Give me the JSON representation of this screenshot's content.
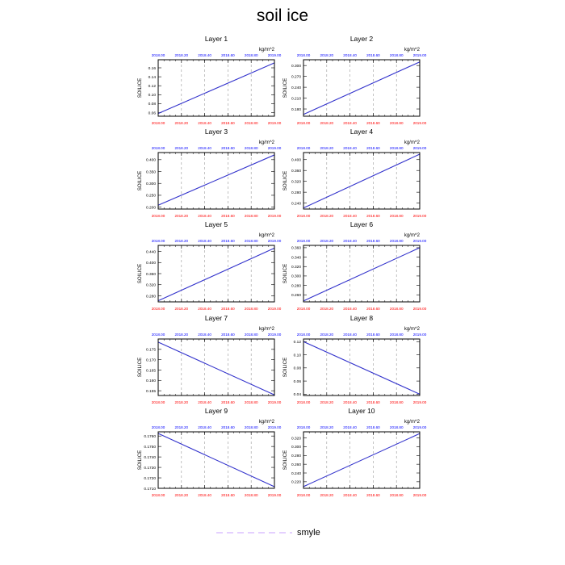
{
  "figure": {
    "title": "soil ice",
    "units": "kg/m^2",
    "ylabel": "SOILICE",
    "legend_label": "smyle"
  },
  "colors": {
    "series_line": "#3333cc",
    "bottom_tick_labels": "#ff0000",
    "top_tick_labels": "#0000ff",
    "grid": "#999999",
    "legend_line": "#c8a0ff"
  },
  "chart_data": [
    {
      "type": "line",
      "title": "Layer 1",
      "ylabel": "SOILICE",
      "units": "kg/m^2",
      "x_ticks": [
        "2018.00",
        "2018.20",
        "2018.40",
        "2018.60",
        "2018.80",
        "2019.00"
      ],
      "y_ticks": [
        "0.06",
        "0.08",
        "0.10",
        "0.12",
        "0.14",
        "0.16"
      ],
      "xlim": [
        2018.0,
        2019.0
      ],
      "ylim": [
        0.052,
        0.178
      ],
      "series": [
        {
          "x": [
            2018.0,
            2019.0
          ],
          "y": [
            0.058,
            0.171
          ]
        }
      ]
    },
    {
      "type": "line",
      "title": "Layer 2",
      "ylabel": "SOILICE",
      "units": "kg/m^2",
      "x_ticks": [
        "2018.00",
        "2018.20",
        "2018.40",
        "2018.60",
        "2018.80",
        "2019.00"
      ],
      "y_ticks": [
        "0.180",
        "0.210",
        "0.240",
        "0.270",
        "0.300"
      ],
      "xlim": [
        2018.0,
        2019.0
      ],
      "ylim": [
        0.16,
        0.316
      ],
      "series": [
        {
          "x": [
            2018.0,
            2019.0
          ],
          "y": [
            0.165,
            0.31
          ]
        }
      ]
    },
    {
      "type": "line",
      "title": "Layer 3",
      "ylabel": "SOILICE",
      "units": "kg/m^2",
      "x_ticks": [
        "2018.00",
        "2018.20",
        "2018.40",
        "2018.60",
        "2018.80",
        "2019.00"
      ],
      "y_ticks": [
        "0.200",
        "0.250",
        "0.300",
        "0.350",
        "0.400"
      ],
      "xlim": [
        2018.0,
        2019.0
      ],
      "ylim": [
        0.192,
        0.43
      ],
      "series": [
        {
          "x": [
            2018.0,
            2019.0
          ],
          "y": [
            0.208,
            0.42
          ]
        }
      ]
    },
    {
      "type": "line",
      "title": "Layer 4",
      "ylabel": "SOILICE",
      "units": "kg/m^2",
      "x_ticks": [
        "2018.00",
        "2018.20",
        "2018.40",
        "2018.60",
        "2018.80",
        "2019.00"
      ],
      "y_ticks": [
        "0.240",
        "0.280",
        "0.320",
        "0.360",
        "0.400"
      ],
      "xlim": [
        2018.0,
        2019.0
      ],
      "ylim": [
        0.218,
        0.426
      ],
      "series": [
        {
          "x": [
            2018.0,
            2019.0
          ],
          "y": [
            0.222,
            0.42
          ]
        }
      ]
    },
    {
      "type": "line",
      "title": "Layer 5",
      "ylabel": "SOILICE",
      "units": "kg/m^2",
      "x_ticks": [
        "2018.00",
        "2018.20",
        "2018.40",
        "2018.60",
        "2018.80",
        "2019.00"
      ],
      "y_ticks": [
        "0.280",
        "0.320",
        "0.360",
        "0.400",
        "0.440"
      ],
      "xlim": [
        2018.0,
        2019.0
      ],
      "ylim": [
        0.258,
        0.462
      ],
      "series": [
        {
          "x": [
            2018.0,
            2019.0
          ],
          "y": [
            0.262,
            0.452
          ]
        }
      ]
    },
    {
      "type": "line",
      "title": "Layer 6",
      "ylabel": "SOILICE",
      "units": "kg/m^2",
      "x_ticks": [
        "2018.00",
        "2018.20",
        "2018.40",
        "2018.60",
        "2018.80",
        "2019.00"
      ],
      "y_ticks": [
        "0.260",
        "0.280",
        "0.300",
        "0.320",
        "0.340",
        "0.360"
      ],
      "xlim": [
        2018.0,
        2019.0
      ],
      "ylim": [
        0.245,
        0.365
      ],
      "series": [
        {
          "x": [
            2018.0,
            2019.0
          ],
          "y": [
            0.247,
            0.36
          ]
        }
      ]
    },
    {
      "type": "line",
      "title": "Layer 7",
      "ylabel": "SOILICE",
      "units": "kg/m^2",
      "x_ticks": [
        "2018.00",
        "2018.20",
        "2018.40",
        "2018.60",
        "2018.80",
        "2019.00"
      ],
      "y_ticks": [
        "0.155",
        "0.160",
        "0.165",
        "0.170",
        "0.175"
      ],
      "xlim": [
        2018.0,
        2019.0
      ],
      "ylim": [
        0.1527,
        0.18
      ],
      "series": [
        {
          "x": [
            2018.0,
            2019.0
          ],
          "y": [
            0.1785,
            0.153
          ]
        }
      ]
    },
    {
      "type": "line",
      "title": "Layer 8",
      "ylabel": "SOILICE",
      "units": "kg/m^2",
      "x_ticks": [
        "2018.00",
        "2018.20",
        "2018.40",
        "2018.60",
        "2018.80",
        "2019.00"
      ],
      "y_ticks": [
        "0.04",
        "0.06",
        "0.08",
        "0.10",
        "0.12"
      ],
      "xlim": [
        2018.0,
        2019.0
      ],
      "ylim": [
        0.038,
        0.124
      ],
      "series": [
        {
          "x": [
            2018.0,
            2019.0
          ],
          "y": [
            0.12,
            0.04
          ]
        }
      ]
    },
    {
      "type": "line",
      "title": "Layer 9",
      "ylabel": "SOILICE",
      "units": "kg/m^2",
      "x_ticks": [
        "2018.00",
        "2018.20",
        "2018.40",
        "2018.60",
        "2018.80",
        "2019.00"
      ],
      "y_ticks": [
        "0.1710",
        "0.1720",
        "0.1730",
        "0.1740",
        "0.1750",
        "0.1760"
      ],
      "xlim": [
        2018.0,
        2019.0
      ],
      "ylim": [
        0.171,
        0.1764
      ],
      "series": [
        {
          "x": [
            2018.0,
            2019.0
          ],
          "y": [
            0.17625,
            0.17115
          ]
        }
      ]
    },
    {
      "type": "line",
      "title": "Layer 10",
      "ylabel": "SOILICE",
      "units": "kg/m^2",
      "x_ticks": [
        "2018.00",
        "2018.20",
        "2018.40",
        "2018.60",
        "2018.80",
        "2019.00"
      ],
      "y_ticks": [
        "0.220",
        "0.240",
        "0.260",
        "0.280",
        "0.300",
        "0.320"
      ],
      "xlim": [
        2018.0,
        2019.0
      ],
      "ylim": [
        0.205,
        0.334
      ],
      "series": [
        {
          "x": [
            2018.0,
            2019.0
          ],
          "y": [
            0.209,
            0.33
          ]
        }
      ]
    }
  ]
}
